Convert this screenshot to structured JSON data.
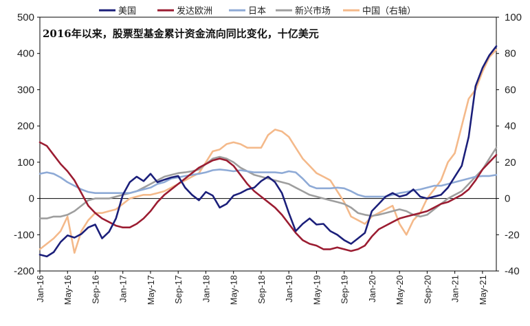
{
  "chart_data": {
    "type": "line",
    "title": "2016年以来，股票型基金累计资金流向同比变化，十亿美元",
    "xlabel": "",
    "ylabel": "",
    "ylim": [
      -200,
      500
    ],
    "y2lim": [
      -40,
      100
    ],
    "yticks": [
      "500",
      "400",
      "300",
      "200",
      "100",
      "0",
      "-100",
      "-200"
    ],
    "y2ticks": [
      "100",
      "80",
      "60",
      "40",
      "20",
      "0",
      "-20",
      "-40"
    ],
    "x_range": [
      0,
      66
    ],
    "x_tick_labels": [
      "Jan-16",
      "May-16",
      "Sep-16",
      "Jan-17",
      "May-17",
      "Sep-17",
      "Jan-18",
      "May-18",
      "Sep-18",
      "Jan-19",
      "May-19",
      "Sep-19",
      "Jan-20",
      "May-20",
      "Sep-20",
      "Jan-21",
      "May-21"
    ],
    "x_tick_months": [
      0,
      4,
      8,
      12,
      16,
      20,
      24,
      28,
      32,
      36,
      40,
      44,
      48,
      52,
      56,
      60,
      64
    ],
    "series": [
      {
        "name": "美国",
        "color": "#1b1f7a",
        "axis": "left",
        "x": [
          0,
          1,
          2,
          3,
          4,
          5,
          6,
          7,
          8,
          9,
          10,
          11,
          12,
          13,
          14,
          15,
          16,
          17,
          18,
          19,
          20,
          21,
          22,
          23,
          24,
          25,
          26,
          27,
          28,
          29,
          30,
          31,
          32,
          33,
          34,
          35,
          36,
          37,
          38,
          39,
          40,
          41,
          42,
          43,
          44,
          45,
          46,
          47,
          48,
          49,
          50,
          51,
          52,
          53,
          54,
          55,
          56,
          57,
          58,
          59,
          60,
          61,
          62,
          63,
          64,
          65,
          66
        ],
        "values": [
          -155,
          -160,
          -148,
          -120,
          -102,
          -108,
          -98,
          -80,
          -72,
          -110,
          -92,
          -55,
          10,
          45,
          60,
          48,
          68,
          45,
          52,
          58,
          62,
          30,
          10,
          -5,
          18,
          8,
          -25,
          -15,
          8,
          15,
          25,
          30,
          48,
          60,
          45,
          15,
          -40,
          -90,
          -70,
          -55,
          -72,
          -70,
          -90,
          -100,
          -115,
          -125,
          -110,
          -95,
          -35,
          -15,
          5,
          15,
          5,
          10,
          25,
          5,
          0,
          5,
          10,
          30,
          60,
          90,
          170,
          310,
          360,
          395,
          420
        ]
      },
      {
        "name": "发达欧洲",
        "color": "#9b1c31",
        "axis": "left",
        "x": [
          0,
          1,
          2,
          3,
          4,
          5,
          6,
          7,
          8,
          9,
          10,
          11,
          12,
          13,
          14,
          15,
          16,
          17,
          18,
          19,
          20,
          21,
          22,
          23,
          24,
          25,
          26,
          27,
          28,
          29,
          30,
          31,
          32,
          33,
          34,
          35,
          36,
          37,
          38,
          39,
          40,
          41,
          42,
          43,
          44,
          45,
          46,
          47,
          48,
          49,
          50,
          51,
          52,
          53,
          54,
          55,
          56,
          57,
          58,
          59,
          60,
          61,
          62,
          63,
          64,
          65,
          66
        ],
        "values": [
          155,
          145,
          120,
          95,
          75,
          50,
          15,
          -20,
          -40,
          -55,
          -65,
          -75,
          -80,
          -80,
          -70,
          -55,
          -35,
          -10,
          10,
          25,
          40,
          55,
          70,
          85,
          95,
          105,
          110,
          105,
          90,
          65,
          40,
          20,
          5,
          -10,
          -25,
          -45,
          -70,
          -95,
          -115,
          -125,
          -130,
          -140,
          -140,
          -135,
          -140,
          -145,
          -140,
          -130,
          -105,
          -85,
          -75,
          -65,
          -55,
          -50,
          -45,
          -40,
          -35,
          -25,
          -15,
          -10,
          0,
          10,
          25,
          50,
          80,
          100,
          120
        ]
      },
      {
        "name": "日本",
        "color": "#8eaad6",
        "axis": "left",
        "x": [
          0,
          1,
          2,
          3,
          4,
          5,
          6,
          7,
          8,
          9,
          10,
          11,
          12,
          13,
          14,
          15,
          16,
          17,
          18,
          19,
          20,
          21,
          22,
          23,
          24,
          25,
          26,
          27,
          28,
          29,
          30,
          31,
          32,
          33,
          34,
          35,
          36,
          37,
          38,
          39,
          40,
          41,
          42,
          43,
          44,
          45,
          46,
          47,
          48,
          49,
          50,
          51,
          52,
          53,
          54,
          55,
          56,
          57,
          58,
          59,
          60,
          61,
          62,
          63,
          64,
          65,
          66
        ],
        "values": [
          68,
          72,
          68,
          58,
          45,
          35,
          25,
          18,
          15,
          15,
          15,
          15,
          15,
          15,
          20,
          25,
          30,
          40,
          45,
          55,
          58,
          62,
          65,
          68,
          72,
          78,
          80,
          78,
          75,
          78,
          75,
          72,
          72,
          72,
          72,
          70,
          75,
          72,
          55,
          35,
          28,
          28,
          28,
          30,
          28,
          20,
          10,
          5,
          5,
          5,
          5,
          10,
          15,
          18,
          22,
          25,
          30,
          35,
          35,
          40,
          45,
          50,
          55,
          60,
          62,
          62,
          65
        ]
      },
      {
        "name": "新兴市场",
        "color": "#9e9e9e",
        "axis": "left",
        "x": [
          0,
          1,
          2,
          3,
          4,
          5,
          6,
          7,
          8,
          9,
          10,
          11,
          12,
          13,
          14,
          15,
          16,
          17,
          18,
          19,
          20,
          21,
          22,
          23,
          24,
          25,
          26,
          27,
          28,
          29,
          30,
          31,
          32,
          33,
          34,
          35,
          36,
          37,
          38,
          39,
          40,
          41,
          42,
          43,
          44,
          45,
          46,
          47,
          48,
          49,
          50,
          51,
          52,
          53,
          54,
          55,
          56,
          57,
          58,
          59,
          60,
          61,
          62,
          63,
          64,
          65,
          66
        ],
        "values": [
          -55,
          -55,
          -50,
          -50,
          -45,
          -35,
          -20,
          -5,
          0,
          0,
          0,
          5,
          10,
          15,
          20,
          30,
          40,
          50,
          60,
          65,
          70,
          72,
          75,
          80,
          95,
          110,
          115,
          110,
          100,
          85,
          75,
          65,
          60,
          55,
          50,
          45,
          40,
          30,
          20,
          10,
          5,
          0,
          -5,
          -10,
          -15,
          -25,
          -40,
          -45,
          -48,
          -45,
          -40,
          -35,
          -30,
          -35,
          -45,
          -50,
          -45,
          -30,
          -15,
          0,
          10,
          20,
          40,
          60,
          80,
          110,
          140
        ]
      },
      {
        "name": "中国（右轴）",
        "color": "#f4b98a",
        "axis": "right",
        "x": [
          0,
          1,
          2,
          3,
          4,
          5,
          6,
          7,
          8,
          9,
          10,
          11,
          12,
          13,
          14,
          15,
          16,
          17,
          18,
          19,
          20,
          21,
          22,
          23,
          24,
          25,
          26,
          27,
          28,
          29,
          30,
          31,
          32,
          33,
          34,
          35,
          36,
          37,
          38,
          39,
          40,
          41,
          42,
          43,
          44,
          45,
          46,
          47,
          48,
          49,
          50,
          51,
          52,
          53,
          54,
          55,
          56,
          57,
          58,
          59,
          60,
          61,
          62,
          63,
          64,
          65,
          66
        ],
        "values": [
          -28,
          -25,
          -22,
          -18,
          -10,
          -30,
          -18,
          -12,
          -8,
          -8,
          -7,
          -6,
          -3,
          0,
          1,
          2,
          2,
          3,
          4,
          6,
          8,
          10,
          12,
          14,
          20,
          26,
          27,
          30,
          31,
          30,
          28,
          28,
          28,
          35,
          38,
          37,
          34,
          28,
          22,
          18,
          14,
          12,
          10,
          4,
          -2,
          -10,
          -12,
          -14,
          -10,
          -8,
          -6,
          -4,
          -14,
          -20,
          -12,
          -8,
          0,
          5,
          10,
          20,
          25,
          40,
          55,
          60,
          70,
          78,
          82
        ]
      }
    ]
  }
}
